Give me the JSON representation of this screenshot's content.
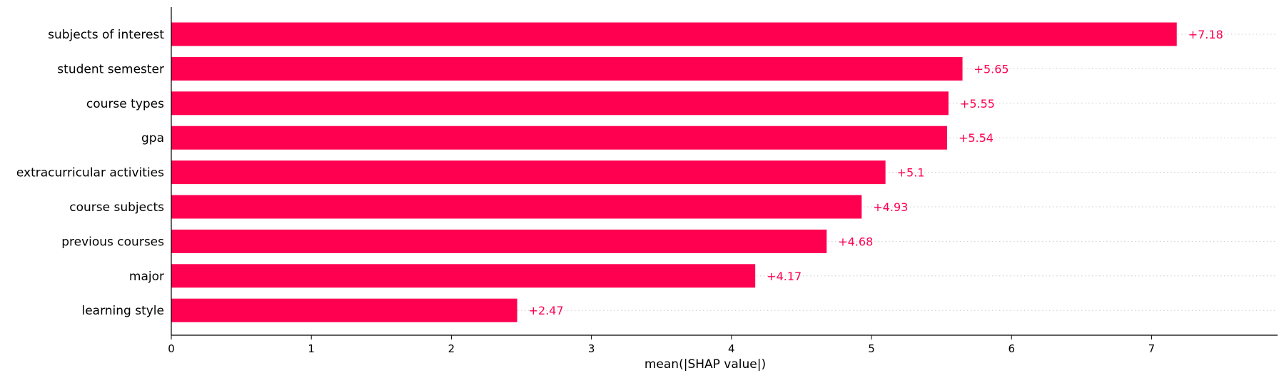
{
  "chart_data": {
    "type": "bar",
    "orientation": "horizontal",
    "categories": [
      "subjects of interest",
      "student semester",
      "course types",
      "gpa",
      "extracurricular activities",
      "course subjects",
      "previous courses",
      "major",
      "learning style"
    ],
    "values": [
      7.18,
      5.65,
      5.55,
      5.54,
      5.1,
      4.93,
      4.68,
      4.17,
      2.47
    ],
    "value_labels": [
      "+7.18",
      "+5.65",
      "+5.55",
      "+5.54",
      "+5.1",
      "+4.93",
      "+4.68",
      "+4.17",
      "+2.47"
    ],
    "title": "",
    "xlabel": "mean(|SHAP value|)",
    "ylabel": "",
    "xlim": [
      0,
      7.9
    ],
    "xticks": [
      "0",
      "1",
      "2",
      "3",
      "4",
      "5",
      "6",
      "7"
    ],
    "grid": "dotted row guides",
    "legend": "none",
    "colors": {
      "bar": "#ff0051",
      "value_label": "#ff0051",
      "axis": "#000000",
      "guide": "#cccccc"
    }
  }
}
